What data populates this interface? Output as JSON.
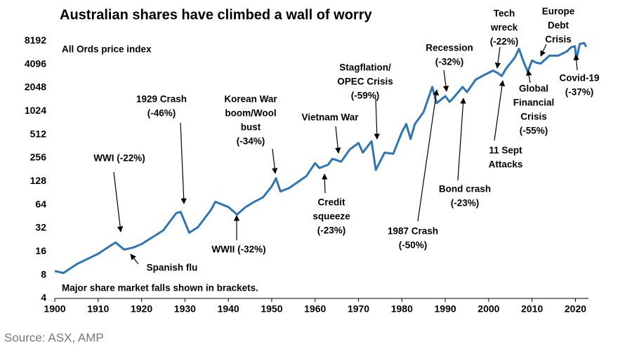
{
  "chart_data": {
    "type": "line",
    "title": "Australian shares have climbed a wall of worry",
    "subtitle": "All Ords price index",
    "note": "Major share market falls shown in brackets.",
    "source": "Source: ASX, AMP",
    "log_scale": true,
    "x": [
      1900,
      1902,
      1905,
      1910,
      1914,
      1916,
      1918,
      1920,
      1925,
      1928,
      1929,
      1931,
      1933,
      1936,
      1937,
      1940,
      1942,
      1944,
      1946,
      1948,
      1950,
      1951,
      1952,
      1954,
      1958,
      1960,
      1961,
      1963,
      1964,
      1966,
      1968,
      1970,
      1971,
      1973,
      1974,
      1976,
      1978,
      1980,
      1981,
      1982,
      1983,
      1985,
      1987,
      1988,
      1990,
      1991,
      1992,
      1994,
      1995,
      1997,
      1999,
      2000,
      2001,
      2002,
      2003,
      2004,
      2006,
      2007,
      2008,
      2009,
      2010,
      2011,
      2012,
      2014,
      2016,
      2018,
      2019,
      2019.9,
      2020.2,
      2021,
      2022,
      2022.5
    ],
    "series": [
      {
        "name": "All Ords",
        "color": "#2e75b6",
        "values": [
          9,
          8.5,
          11,
          15,
          21,
          17,
          18,
          20,
          30,
          50,
          52,
          28,
          33,
          55,
          70,
          60,
          48,
          60,
          70,
          80,
          110,
          140,
          95,
          105,
          150,
          220,
          190,
          210,
          250,
          230,
          330,
          400,
          300,
          420,
          180,
          300,
          290,
          550,
          700,
          450,
          700,
          1000,
          2100,
          1300,
          1600,
          1350,
          1550,
          2100,
          1800,
          2600,
          3000,
          3200,
          3400,
          3200,
          2900,
          3600,
          5000,
          6500,
          4500,
          3300,
          4600,
          4300,
          4200,
          5300,
          5300,
          6000,
          6800,
          7000,
          4700,
          7500,
          7700,
          6900
        ]
      }
    ],
    "xlim": [
      1900,
      2023
    ],
    "xticks": [
      1900,
      1910,
      1920,
      1930,
      1940,
      1950,
      1960,
      1970,
      1980,
      1990,
      2000,
      2010,
      2020
    ],
    "ylim": [
      4,
      12000
    ],
    "yticks": [
      4,
      8,
      16,
      32,
      64,
      128,
      256,
      512,
      1024,
      2048,
      4096,
      8192
    ],
    "annotations": [
      [
        "WWI (-22%)"
      ],
      [
        "Spanish flu"
      ],
      [
        "1929 Crash",
        "(-46%)"
      ],
      [
        "Korean War",
        "boom/Wool",
        "bust",
        "(-34%)"
      ],
      [
        "Vietnam War"
      ],
      [
        "Stagflation/",
        "OPEC Crisis",
        "(-59%)"
      ],
      [
        "Credit",
        "squeeze",
        "(-23%)"
      ],
      [
        "WWII (-32%)"
      ],
      [
        "Recession",
        "(-32%)"
      ],
      [
        "Tech",
        "wreck",
        "(-22%)"
      ],
      [
        "Europe",
        "Debt",
        "Crisis"
      ],
      [
        "Covid-19",
        "(-37%)"
      ],
      [
        "Global",
        "Financial",
        "Crisis",
        "(-55%)"
      ],
      [
        "11 Sept",
        "Attacks"
      ],
      [
        "Bond crash",
        "(-23%)"
      ],
      [
        "1987 Crash",
        "(-50%)"
      ]
    ]
  }
}
